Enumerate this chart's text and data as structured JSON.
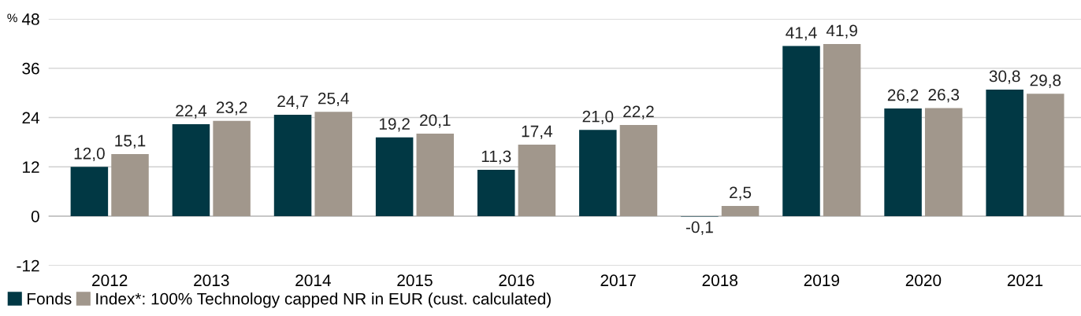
{
  "chart_data": {
    "type": "bar",
    "ylabel": "%",
    "categories": [
      "2012",
      "2013",
      "2014",
      "2015",
      "2016",
      "2017",
      "2018",
      "2019",
      "2020",
      "2021"
    ],
    "series": [
      {
        "name": "Fonds",
        "color": "#013844",
        "values": [
          12.0,
          22.4,
          24.7,
          19.2,
          11.3,
          21.0,
          -0.1,
          41.4,
          26.2,
          30.8
        ],
        "value_labels": [
          "12,0",
          "22,4",
          "24,7",
          "19,2",
          "11,3",
          "21,0",
          "-0,1",
          "41,4",
          "26,2",
          "30,8"
        ]
      },
      {
        "name": "Index*: 100% Technology capped NR in EUR (cust. calculated)",
        "color": "#a1978c",
        "values": [
          15.1,
          23.2,
          25.4,
          20.1,
          17.4,
          22.2,
          2.5,
          41.9,
          26.3,
          29.8
        ],
        "value_labels": [
          "15,1",
          "23,2",
          "25,4",
          "20,1",
          "17,4",
          "22,2",
          "2,5",
          "41,9",
          "26,3",
          "29,8"
        ]
      }
    ],
    "ylim": [
      -12,
      48
    ],
    "yticks": [
      -12,
      0,
      12,
      24,
      36,
      48
    ],
    "grid": "y",
    "legend": "bottom left"
  }
}
